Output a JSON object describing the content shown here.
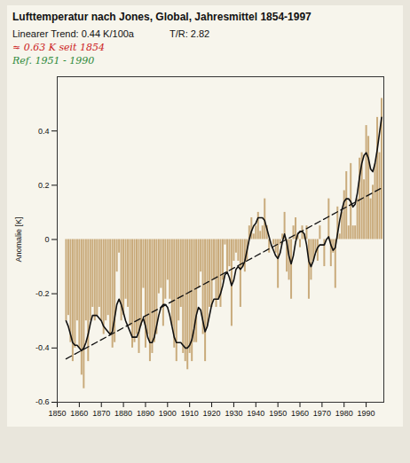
{
  "chart_data": {
    "type": "bar",
    "title": "Lufttemperatur nach Jones, Global, Jahresmittel 1854-1997",
    "annotations": [
      {
        "text": "Linearer Trend: 0.44 K/100a",
        "color": "#111111"
      },
      {
        "text": "T/R: 2.82",
        "color": "#111111"
      },
      {
        "text": "≈ 0.63 K seit 1854",
        "color": "#cc2222"
      },
      {
        "text": "Ref. 1951 - 1990",
        "color": "#2f8a3a"
      }
    ],
    "y_label": "Anomalie [K]",
    "x": [
      1854,
      1855,
      1856,
      1857,
      1858,
      1859,
      1860,
      1861,
      1862,
      1863,
      1864,
      1865,
      1866,
      1867,
      1868,
      1869,
      1870,
      1871,
      1872,
      1873,
      1874,
      1875,
      1876,
      1877,
      1878,
      1879,
      1880,
      1881,
      1882,
      1883,
      1884,
      1885,
      1886,
      1887,
      1888,
      1889,
      1890,
      1891,
      1892,
      1893,
      1894,
      1895,
      1896,
      1897,
      1898,
      1899,
      1900,
      1901,
      1902,
      1903,
      1904,
      1905,
      1906,
      1907,
      1908,
      1909,
      1910,
      1911,
      1912,
      1913,
      1914,
      1915,
      1916,
      1917,
      1918,
      1919,
      1920,
      1921,
      1922,
      1923,
      1924,
      1925,
      1926,
      1927,
      1928,
      1929,
      1930,
      1931,
      1932,
      1933,
      1934,
      1935,
      1936,
      1937,
      1938,
      1939,
      1940,
      1941,
      1942,
      1943,
      1944,
      1945,
      1946,
      1947,
      1948,
      1949,
      1950,
      1951,
      1952,
      1953,
      1954,
      1955,
      1956,
      1957,
      1958,
      1959,
      1960,
      1961,
      1962,
      1963,
      1964,
      1965,
      1966,
      1967,
      1968,
      1969,
      1970,
      1971,
      1972,
      1973,
      1974,
      1975,
      1976,
      1977,
      1978,
      1979,
      1980,
      1981,
      1982,
      1983,
      1984,
      1985,
      1986,
      1987,
      1988,
      1989,
      1990,
      1991,
      1992,
      1993,
      1994,
      1995,
      1996,
      1997
    ],
    "series": [
      {
        "type": "bar",
        "color": "#c9ab7c",
        "values": [
          -0.3,
          -0.28,
          -0.38,
          -0.45,
          -0.4,
          -0.3,
          -0.4,
          -0.5,
          -0.55,
          -0.3,
          -0.45,
          -0.3,
          -0.25,
          -0.3,
          -0.28,
          -0.25,
          -0.3,
          -0.35,
          -0.3,
          -0.28,
          -0.35,
          -0.4,
          -0.38,
          -0.12,
          -0.05,
          -0.3,
          -0.28,
          -0.22,
          -0.25,
          -0.32,
          -0.4,
          -0.38,
          -0.35,
          -0.42,
          -0.32,
          -0.18,
          -0.4,
          -0.35,
          -0.45,
          -0.42,
          -0.38,
          -0.35,
          -0.2,
          -0.18,
          -0.32,
          -0.22,
          -0.15,
          -0.22,
          -0.32,
          -0.4,
          -0.45,
          -0.3,
          -0.25,
          -0.42,
          -0.45,
          -0.48,
          -0.42,
          -0.45,
          -0.38,
          -0.38,
          -0.18,
          -0.12,
          -0.35,
          -0.45,
          -0.32,
          -0.25,
          -0.25,
          -0.15,
          -0.25,
          -0.22,
          -0.25,
          -0.15,
          -0.02,
          -0.12,
          -0.1,
          -0.32,
          -0.08,
          -0.05,
          -0.08,
          -0.25,
          -0.1,
          -0.12,
          -0.08,
          0.05,
          0.08,
          0.02,
          0.05,
          0.1,
          0.03,
          0.05,
          0.15,
          0.05,
          -0.05,
          0.0,
          -0.02,
          -0.05,
          -0.18,
          -0.02,
          0.02,
          0.1,
          -0.12,
          -0.15,
          -0.22,
          0.05,
          0.08,
          0.02,
          -0.03,
          0.05,
          0.02,
          0.05,
          -0.22,
          -0.15,
          -0.08,
          -0.05,
          -0.08,
          0.05,
          0.0,
          -0.1,
          0.0,
          0.15,
          -0.1,
          -0.05,
          -0.18,
          0.12,
          0.02,
          0.1,
          0.18,
          0.25,
          0.05,
          0.28,
          0.05,
          0.05,
          0.15,
          0.3,
          0.32,
          0.22,
          0.42,
          0.38,
          0.15,
          0.2,
          0.28,
          0.45,
          0.32,
          0.52
        ]
      },
      {
        "type": "line",
        "color": "#111111",
        "values": [
          -0.3,
          -0.32,
          -0.35,
          -0.38,
          -0.39,
          -0.39,
          -0.4,
          -0.41,
          -0.4,
          -0.38,
          -0.35,
          -0.31,
          -0.28,
          -0.28,
          -0.28,
          -0.29,
          -0.3,
          -0.32,
          -0.33,
          -0.34,
          -0.35,
          -0.34,
          -0.29,
          -0.24,
          -0.22,
          -0.24,
          -0.27,
          -0.3,
          -0.32,
          -0.34,
          -0.36,
          -0.36,
          -0.36,
          -0.34,
          -0.31,
          -0.29,
          -0.32,
          -0.36,
          -0.38,
          -0.38,
          -0.36,
          -0.32,
          -0.28,
          -0.25,
          -0.24,
          -0.24,
          -0.25,
          -0.28,
          -0.32,
          -0.36,
          -0.38,
          -0.38,
          -0.38,
          -0.39,
          -0.4,
          -0.4,
          -0.39,
          -0.37,
          -0.33,
          -0.28,
          -0.25,
          -0.26,
          -0.3,
          -0.34,
          -0.32,
          -0.28,
          -0.24,
          -0.22,
          -0.22,
          -0.22,
          -0.2,
          -0.17,
          -0.13,
          -0.12,
          -0.14,
          -0.17,
          -0.15,
          -0.11,
          -0.1,
          -0.11,
          -0.1,
          -0.08,
          -0.04,
          0.0,
          0.03,
          0.05,
          0.06,
          0.08,
          0.08,
          0.08,
          0.07,
          0.04,
          0.01,
          -0.02,
          -0.04,
          -0.06,
          -0.07,
          -0.05,
          -0.01,
          0.02,
          -0.01,
          -0.06,
          -0.09,
          -0.06,
          -0.01,
          0.02,
          0.03,
          0.03,
          0.02,
          -0.02,
          -0.08,
          -0.1,
          -0.08,
          -0.05,
          -0.03,
          -0.02,
          -0.02,
          -0.02,
          0.0,
          0.01,
          -0.02,
          -0.04,
          -0.03,
          0.02,
          0.07,
          0.11,
          0.14,
          0.15,
          0.15,
          0.14,
          0.12,
          0.13,
          0.17,
          0.23,
          0.28,
          0.31,
          0.32,
          0.3,
          0.26,
          0.25,
          0.28,
          0.33,
          0.39,
          0.45
        ]
      },
      {
        "type": "line",
        "line_style": "dashed",
        "color": "#111111",
        "x": [
          1854,
          1997
        ],
        "values": [
          -0.44,
          0.19
        ]
      }
    ],
    "xlim": [
      1850,
      1998
    ],
    "xticks": [
      1850,
      1860,
      1870,
      1880,
      1890,
      1900,
      1910,
      1920,
      1930,
      1940,
      1950,
      1960,
      1970,
      1980,
      1990
    ],
    "ylim": [
      -0.6,
      0.6
    ],
    "yticks": [
      -0.6,
      -0.4,
      -0.2,
      0,
      0.2,
      0.4
    ],
    "grid": false
  }
}
